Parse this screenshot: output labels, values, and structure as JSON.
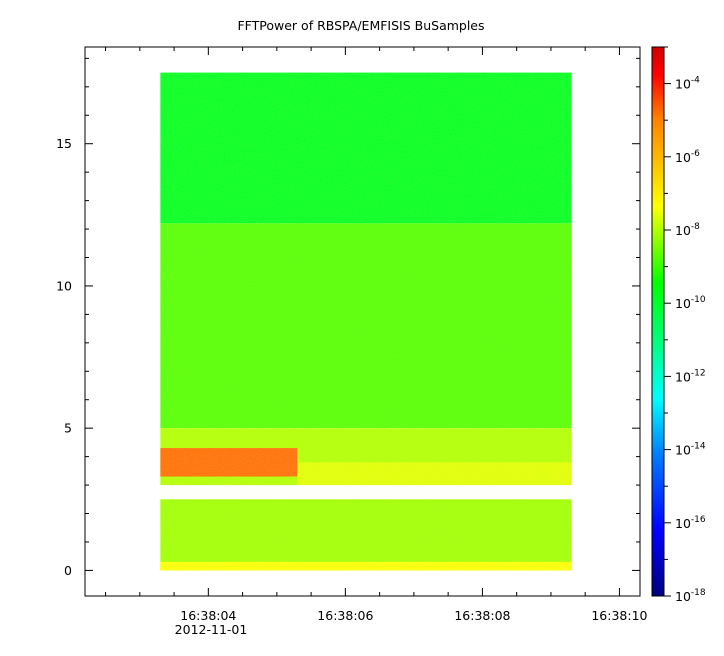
{
  "chart_data": {
    "type": "heatmap",
    "title": "FFTPower of RBSPA/EMFISIS  BuSamples",
    "xlabel": "",
    "ylabel": "",
    "x_tick_labels": [
      "16:38:04",
      "16:38:06",
      "16:38:08",
      "16:38:10"
    ],
    "x_tick_seconds": [
      4,
      6,
      8,
      10
    ],
    "x_date_label": "2012-11-01",
    "x_data_range_seconds": [
      3.3,
      9.3
    ],
    "xlim_seconds": [
      2.2,
      10.3
    ],
    "y_ticks": [
      0,
      5,
      10,
      15
    ],
    "ylim": [
      -0.9,
      18.4
    ],
    "y_data_range": [
      0,
      17.5
    ],
    "colorbar": {
      "scale": "log",
      "range_exponents": [
        -18,
        -3
      ],
      "tick_base": "10",
      "tick_exponents": [
        "-4",
        "-6",
        "-8",
        "-10",
        "-12",
        "-14",
        "-16",
        "-18"
      ],
      "tick_values": [
        -4,
        -6,
        -8,
        -10,
        -12,
        -14,
        -16,
        -18
      ],
      "colormap": [
        "#00007f",
        "#0000ff",
        "#0080ff",
        "#00ffff",
        "#00ff80",
        "#00ff00",
        "#80ff00",
        "#ffff00",
        "#ffc000",
        "#ff8000",
        "#ff0000",
        "#d00000"
      ]
    },
    "bands": [
      {
        "y": [
          12.2,
          17.5
        ],
        "t": [
          3.3,
          9.3
        ],
        "log_power": -11.5
      },
      {
        "y": [
          5.0,
          12.2
        ],
        "t": [
          3.3,
          9.3
        ],
        "log_power": -10.3
      },
      {
        "y": [
          3.0,
          5.0
        ],
        "t": [
          3.3,
          9.3
        ],
        "log_power": -9.3
      },
      {
        "y": [
          3.3,
          4.3
        ],
        "t": [
          3.3,
          5.3
        ],
        "log_power": -5.5
      },
      {
        "y": [
          3.0,
          3.8
        ],
        "t": [
          5.3,
          9.3
        ],
        "log_power": -8.8
      },
      {
        "y": [
          0,
          2.5
        ],
        "t": [
          3.3,
          9.3
        ],
        "log_power": -9.5
      },
      {
        "y": [
          0,
          0.3
        ],
        "t": [
          3.3,
          9.3
        ],
        "log_power": -8.5
      }
    ]
  }
}
